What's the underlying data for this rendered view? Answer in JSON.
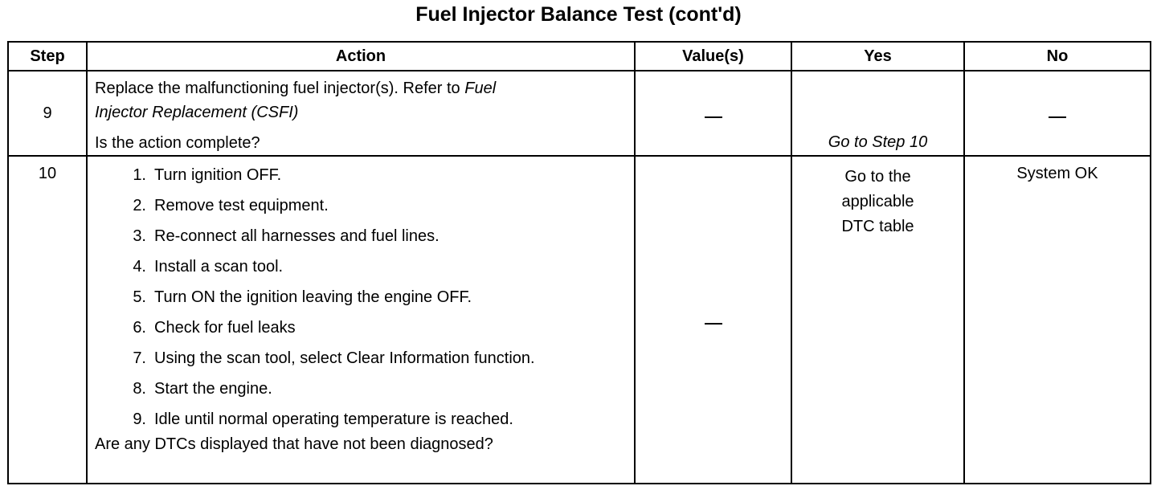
{
  "title": "Fuel Injector Balance Test (cont'd)",
  "headers": [
    "Step",
    "Action",
    "Value(s)",
    "Yes",
    "No"
  ],
  "rows": [
    {
      "step": "9",
      "action_lines": [
        "Replace the malfunctioning fuel injector(s). Refer to ",
        "Fuel",
        "Injector Replacement (CSFI)",
        "Is the action complete?"
      ],
      "value": "—",
      "yes": "Go to Step 10",
      "no": "—"
    },
    {
      "step": "10",
      "items": [
        {
          "n": "1.",
          "t": "Turn ignition OFF."
        },
        {
          "n": "2.",
          "t": "Remove test equipment."
        },
        {
          "n": "3.",
          "t": "Re-connect all harnesses and fuel lines."
        },
        {
          "n": "4.",
          "t": "Install a scan tool."
        },
        {
          "n": "5.",
          "t": "Turn ON the ignition leaving the engine OFF."
        },
        {
          "n": "6.",
          "t": "Check for fuel leaks"
        },
        {
          "n": "7.",
          "t": "Using the scan tool, select Clear Information function."
        },
        {
          "n": "8.",
          "t": "Start the engine."
        },
        {
          "n": "9.",
          "t": "Idle until normal operating temperature is reached."
        }
      ],
      "question": "Are any DTCs displayed that have not been diagnosed?",
      "value": "—",
      "yes": "Go to the applicable DTC table",
      "no": "System OK"
    }
  ]
}
